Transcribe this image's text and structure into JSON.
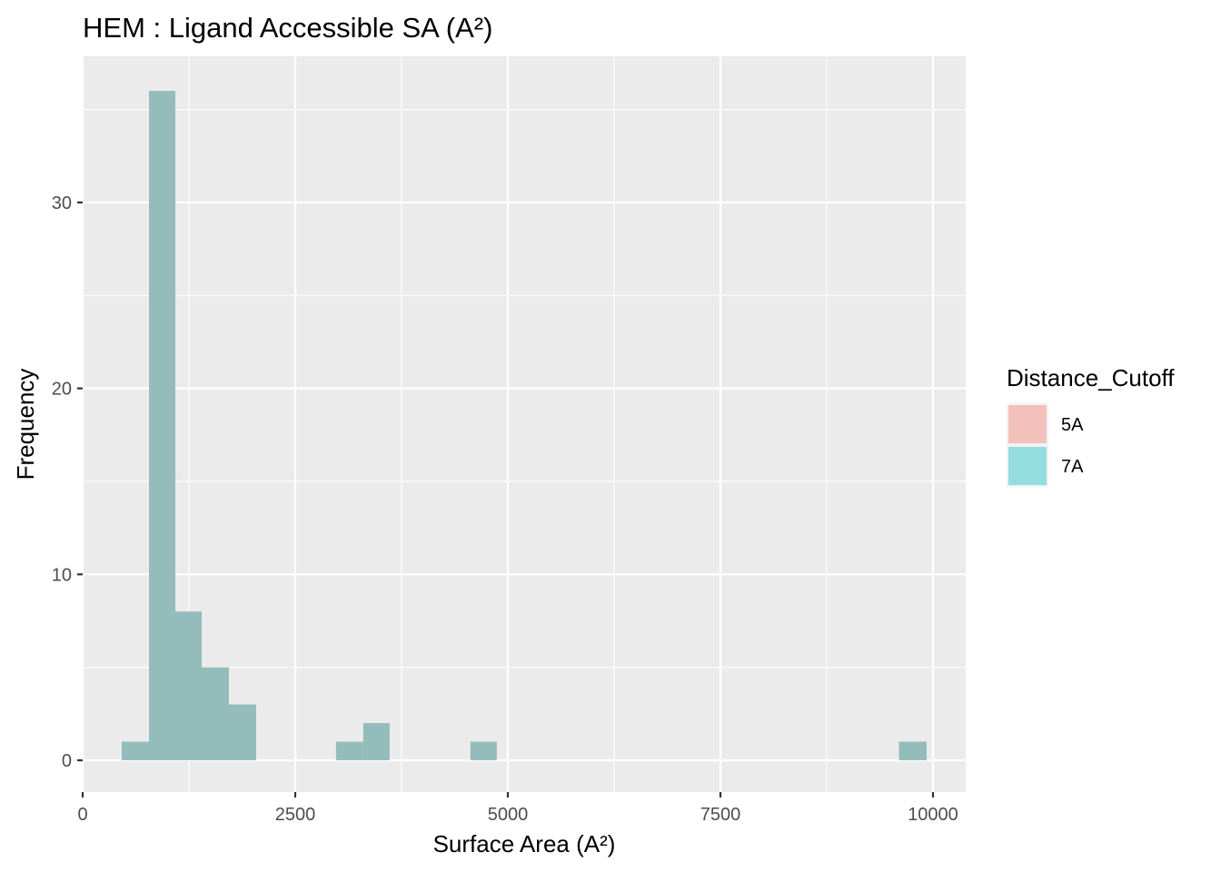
{
  "chart_data": {
    "type": "bar",
    "subtype": "histogram",
    "title": "HEM : Ligand Accessible SA (A²)",
    "xlabel": "Surface Area (A²)",
    "ylabel": "Frequency",
    "xlim": [
      0,
      10350
    ],
    "ylim": [
      -1.7,
      38
    ],
    "x_ticks": [
      0,
      2500,
      5000,
      7500,
      10000
    ],
    "x_tick_labels": [
      "0",
      "2500",
      "5000",
      "7500",
      "10000"
    ],
    "y_ticks": [
      0,
      10,
      20,
      30
    ],
    "y_tick_labels": [
      "0",
      "10",
      "20",
      "30"
    ],
    "grid": true,
    "legend": {
      "title": "Distance_Cutoff",
      "position": "right",
      "entries": [
        {
          "label": "5A",
          "color": "#F8766D"
        },
        {
          "label": "7A",
          "color": "#00BFC4"
        }
      ]
    },
    "bins": [
      {
        "x0": 459,
        "x1": 780,
        "count": 1
      },
      {
        "x0": 780,
        "x1": 1090,
        "count": 36
      },
      {
        "x0": 1090,
        "x1": 1400,
        "count": 8
      },
      {
        "x0": 1400,
        "x1": 1720,
        "count": 5
      },
      {
        "x0": 1720,
        "x1": 2040,
        "count": 3
      },
      {
        "x0": 2980,
        "x1": 3300,
        "count": 1
      },
      {
        "x0": 3300,
        "x1": 3610,
        "count": 2
      },
      {
        "x0": 4560,
        "x1": 4870,
        "count": 1
      },
      {
        "x0": 9600,
        "x1": 9925,
        "count": 1
      }
    ],
    "series": [
      {
        "name": "7A (overlapping 5A)",
        "display_color": "#93BCBB"
      }
    ]
  },
  "colors": {
    "panel_bg": "#EBEBEB",
    "grid": "#FFFFFF",
    "bar_fill": "#93BCBB"
  }
}
